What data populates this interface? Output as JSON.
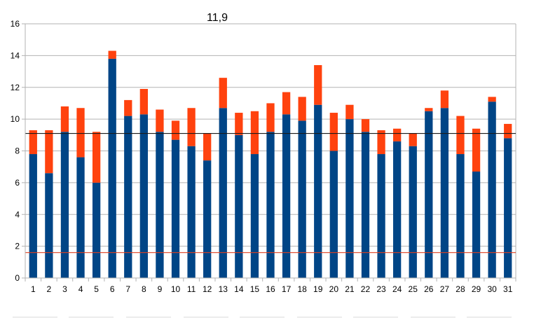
{
  "chart_data": {
    "type": "bar",
    "stacked": true,
    "title": "11,9",
    "categories": [
      "1",
      "2",
      "3",
      "4",
      "5",
      "6",
      "7",
      "8",
      "9",
      "10",
      "11",
      "12",
      "13",
      "14",
      "15",
      "16",
      "17",
      "18",
      "19",
      "20",
      "21",
      "22",
      "23",
      "24",
      "25",
      "26",
      "27",
      "28",
      "29",
      "30",
      "31"
    ],
    "series": [
      {
        "color": "#004586",
        "values": [
          7.8,
          6.6,
          9.2,
          7.6,
          6.0,
          13.8,
          10.2,
          10.3,
          9.2,
          8.7,
          8.3,
          7.4,
          10.7,
          9.0,
          7.8,
          9.2,
          10.3,
          9.9,
          10.9,
          8.0,
          10.0,
          9.2,
          7.8,
          8.6,
          8.3,
          10.5,
          10.7,
          7.8,
          6.7,
          11.1,
          8.8
        ]
      },
      {
        "color": "#ff420e",
        "values": [
          1.5,
          2.7,
          1.6,
          3.1,
          3.2,
          0.5,
          1.0,
          1.6,
          1.4,
          1.2,
          2.4,
          1.7,
          1.9,
          1.4,
          2.7,
          1.8,
          1.4,
          1.5,
          2.5,
          2.4,
          0.9,
          0.8,
          1.5,
          0.8,
          0.8,
          0.2,
          1.1,
          2.4,
          2.7,
          0.3,
          0.9
        ]
      }
    ],
    "reference_lines": [
      {
        "value": 9.1,
        "color": "#1a1a1a"
      },
      {
        "value": 1.6,
        "color": "#e04020"
      }
    ],
    "ylim": [
      0,
      16
    ],
    "yticks": [
      0,
      2,
      4,
      6,
      8,
      10,
      12,
      14,
      16
    ],
    "grid": true,
    "legend": "none",
    "xlabel": "",
    "ylabel": ""
  }
}
